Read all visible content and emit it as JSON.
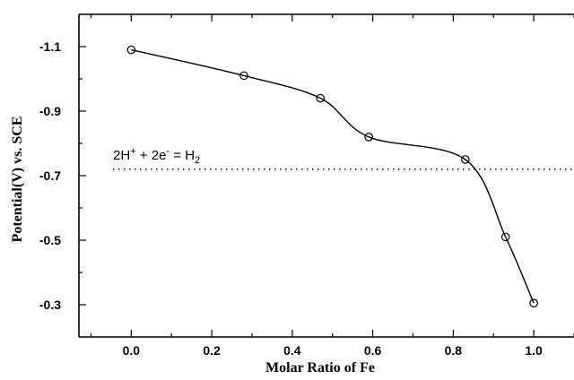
{
  "chart_data": {
    "type": "line",
    "title": "",
    "xlabel": "Molar Ratio of Fe",
    "ylabel": "Potential(V) vs. SCE",
    "xlim": [
      -0.13,
      1.1
    ],
    "ylim": [
      -1.2,
      -0.2
    ],
    "y_inverted": true,
    "x_ticks": [
      0.0,
      0.2,
      0.4,
      0.6,
      0.8,
      1.0
    ],
    "x_tick_labels": [
      "0.0",
      "0.2",
      "0.4",
      "0.6",
      "0.8",
      "1.0"
    ],
    "y_ticks": [
      -1.1,
      -0.9,
      -0.7,
      -0.5,
      -0.3
    ],
    "y_tick_labels": [
      "-1.1",
      "-0.9",
      "-0.7",
      "-0.5",
      "-0.3"
    ],
    "grid": false,
    "series": [
      {
        "marker": "open-circle",
        "x": [
          0.0,
          0.28,
          0.47,
          0.59,
          0.83,
          0.93,
          1.0
        ],
        "y": [
          -1.09,
          -1.01,
          -0.94,
          -0.82,
          -0.75,
          -0.51,
          -0.305
        ]
      }
    ],
    "reference_line": {
      "y": -0.72,
      "style": "dotted",
      "label_parts": {
        "a": "2H",
        "a_sup": "+",
        "plus": " + ",
        "b": "2e",
        "b_sup": "-",
        "eq": " = H",
        "c_sub": "2"
      }
    }
  }
}
